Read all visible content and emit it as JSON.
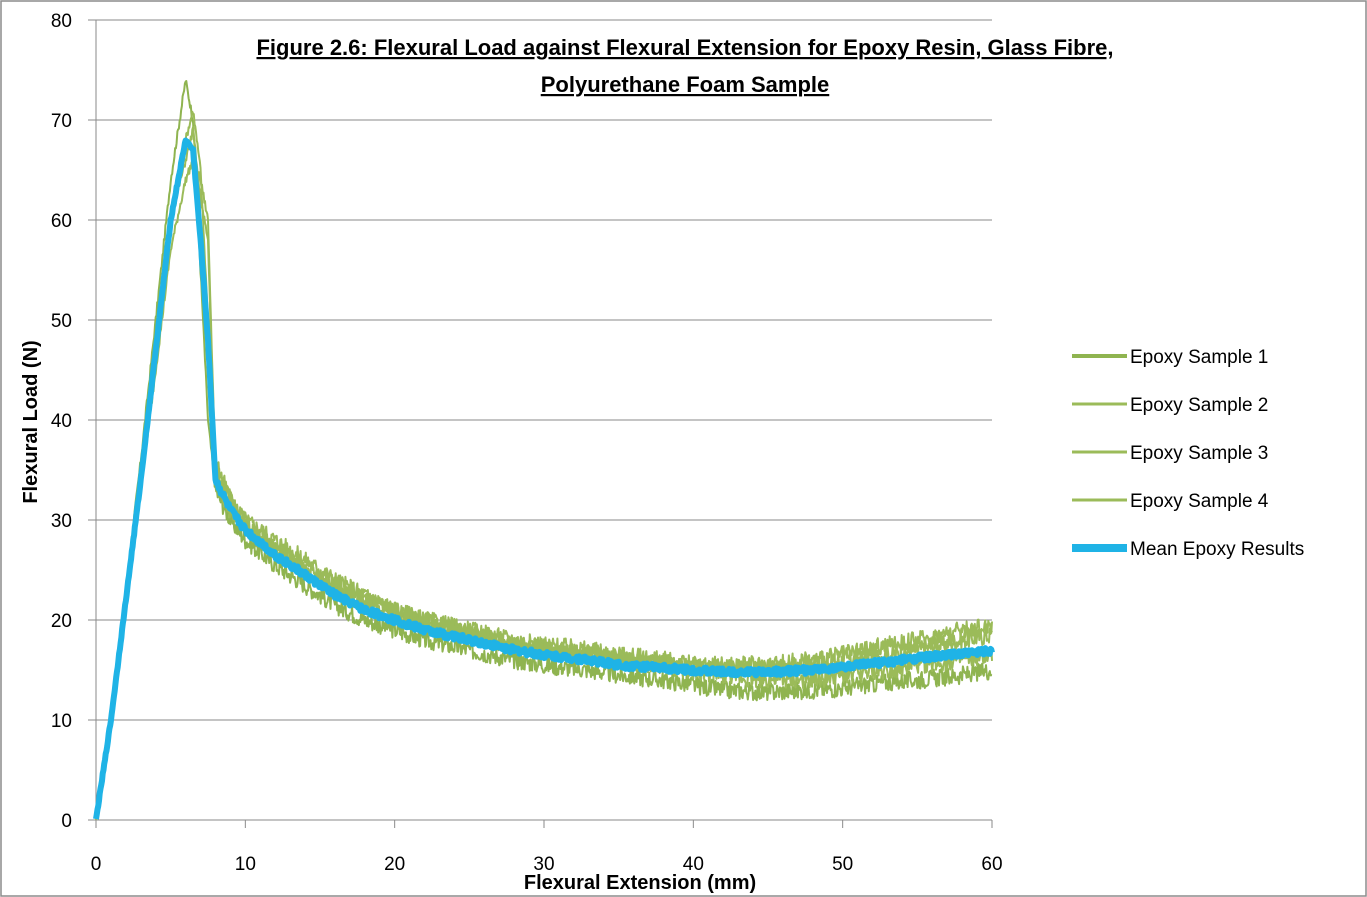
{
  "chart_data": {
    "type": "line",
    "title_lines": [
      "Figure 2.6: Flexural Load against Flexural Extension for Epoxy Resin, Glass Fibre,",
      "Polyurethane Foam Sample"
    ],
    "xlabel": "Flexural Extension (mm)",
    "ylabel": "Flexural Load (N)",
    "xlim": [
      0,
      60
    ],
    "ylim": [
      0,
      80
    ],
    "x_ticks": [
      "0",
      "10",
      "20",
      "30",
      "40",
      "50",
      "60"
    ],
    "y_ticks": [
      "0",
      "10",
      "20",
      "30",
      "40",
      "50",
      "60",
      "70",
      "80"
    ],
    "grid": "horizontal",
    "legend_position": "right",
    "series": [
      {
        "name": "Epoxy Sample 1",
        "color": "#8fb450",
        "x": [
          0,
          1,
          2,
          3,
          4,
          5,
          6,
          6.5,
          7.0,
          7.5,
          8,
          9,
          10,
          12,
          14,
          16,
          18,
          20,
          22,
          25,
          28,
          30,
          33,
          35,
          38,
          40,
          42,
          45,
          48,
          50,
          53,
          55,
          58,
          60
        ],
        "y": [
          0,
          11,
          23,
          36,
          50,
          64,
          74,
          70,
          55,
          40,
          33,
          30,
          28,
          25.5,
          23.5,
          21.5,
          20,
          19,
          18,
          17,
          16,
          15.5,
          15,
          14.5,
          14,
          13.5,
          13,
          12.8,
          13,
          13.2,
          13.8,
          14,
          14.5,
          15
        ]
      },
      {
        "name": "Epoxy Sample 2",
        "color": "#9bbb59",
        "x": [
          0,
          1,
          2,
          3,
          4,
          5,
          6,
          6.5,
          7.0,
          7.5,
          8,
          9,
          10,
          12,
          14,
          16,
          18,
          20,
          22,
          25,
          28,
          30,
          33,
          35,
          38,
          40,
          42,
          45,
          48,
          50,
          53,
          55,
          58,
          60
        ],
        "y": [
          0,
          10,
          22,
          34,
          47,
          60,
          68,
          71,
          65,
          50,
          36,
          32,
          30,
          28,
          26,
          24,
          22.5,
          21,
          20,
          19,
          18,
          17.5,
          17,
          16.5,
          16,
          15.5,
          15.5,
          15.5,
          16,
          16.5,
          17.5,
          18,
          19,
          19.5
        ]
      },
      {
        "name": "Epoxy Sample 3",
        "color": "#9bbb59",
        "x": [
          0,
          1,
          2,
          3,
          4,
          5,
          6,
          6.5,
          7.0,
          7.5,
          8,
          9,
          10,
          12,
          14,
          16,
          18,
          20,
          22,
          25,
          28,
          30,
          33,
          35,
          38,
          40,
          42,
          45,
          48,
          50,
          53,
          55,
          58,
          60
        ],
        "y": [
          0,
          10,
          21,
          33,
          45,
          57,
          64,
          66,
          64,
          60,
          35,
          32,
          29.5,
          27,
          25,
          23,
          21.5,
          20.5,
          19.5,
          18.5,
          17.5,
          17,
          16.5,
          16,
          15.5,
          15,
          14.5,
          14,
          14,
          14.5,
          15,
          15.5,
          16,
          16.5
        ]
      },
      {
        "name": "Epoxy Sample 4",
        "color": "#9bbb59",
        "x": [
          0,
          1,
          2,
          3,
          4,
          5,
          6,
          6.5,
          7.0,
          7.5,
          8,
          9,
          10,
          12,
          14,
          16,
          18,
          20,
          22,
          25,
          28,
          30,
          33,
          35,
          38,
          40,
          42,
          45,
          48,
          50,
          53,
          55,
          58,
          60
        ],
        "y": [
          0,
          10,
          22,
          35,
          48,
          60,
          66,
          69,
          62,
          58,
          34,
          31,
          29,
          27,
          25,
          23.5,
          22,
          21,
          20,
          18.5,
          17.5,
          17,
          16.5,
          16,
          15.5,
          15,
          15,
          15,
          15.5,
          16,
          16.5,
          17,
          18,
          18.5
        ]
      },
      {
        "name": "Mean Epoxy Results",
        "color": "#1fb3e6",
        "x": [
          0,
          1,
          2,
          3,
          4,
          5,
          6,
          6.5,
          7.0,
          7.5,
          8,
          9,
          10,
          12,
          14,
          16,
          18,
          20,
          22,
          25,
          28,
          30,
          33,
          35,
          38,
          40,
          42,
          45,
          48,
          50,
          53,
          55,
          58,
          60
        ],
        "y": [
          0,
          10,
          22,
          34,
          47,
          60,
          68,
          67,
          58,
          48,
          34,
          31,
          29,
          26.5,
          24.5,
          22.5,
          21,
          20,
          19,
          18,
          17,
          16.5,
          16,
          15.5,
          15.2,
          15,
          14.8,
          14.8,
          15,
          15.3,
          15.8,
          16.2,
          16.6,
          17
        ]
      }
    ]
  }
}
